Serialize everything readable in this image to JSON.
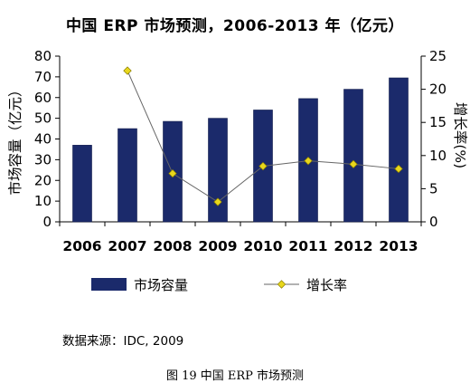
{
  "chart_data": {
    "type": "bar",
    "title": "中国 ERP 市场预测，2006-2013 年（亿元）",
    "categories": [
      "2006",
      "2007",
      "2008",
      "2009",
      "2010",
      "2011",
      "2012",
      "2013"
    ],
    "series": [
      {
        "name": "市场容量",
        "type": "bar",
        "axis": "left",
        "color": "#1b2a6b",
        "values": [
          37,
          45,
          48.5,
          50,
          54,
          59.5,
          64,
          69.5
        ]
      },
      {
        "name": "增长率",
        "type": "line",
        "axis": "right",
        "color": "#e8d71c",
        "values": [
          null,
          22.8,
          7.3,
          3.0,
          8.4,
          9.2,
          8.7,
          8.0
        ]
      }
    ],
    "ylabel": "市场容量（亿元）",
    "y2label": "增长率(%)",
    "ylim": [
      0,
      80
    ],
    "yticks": [
      0,
      10,
      20,
      30,
      40,
      50,
      60,
      70,
      80
    ],
    "y2lim": [
      0,
      25
    ],
    "y2ticks": [
      0,
      5,
      10,
      15,
      20,
      25
    ],
    "legend": "bottom",
    "grid": false
  },
  "source_text": "数据来源：IDC, 2009",
  "caption": "图 19  中国 ERP 市场预测"
}
